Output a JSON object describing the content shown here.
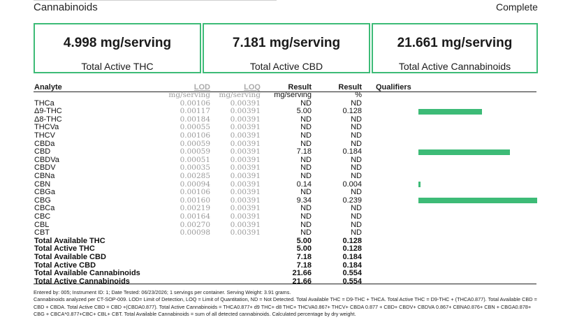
{
  "header": {
    "title": "Cannabinoids",
    "status": "Complete"
  },
  "summary_cards": [
    {
      "value": "4.998 mg/serving",
      "label": "Total Active THC"
    },
    {
      "value": "7.181 mg/serving",
      "label": "Total Active CBD"
    },
    {
      "value": "21.661 mg/serving",
      "label": "Total Active Cannabinoids"
    }
  ],
  "table": {
    "headers": {
      "analyte": "Analyte",
      "lod": "LOD",
      "loq": "LOQ",
      "result_mg": "Result",
      "result_pct": "Result",
      "qualifiers": "Qualifiers"
    },
    "units": {
      "lod": "mg/serving",
      "loq": "mg/serving",
      "result_mg": "mg/serving",
      "result_pct": "%"
    },
    "rows": [
      {
        "name": "THCa",
        "lod": "0.00106",
        "loq": "0.00391",
        "mg": "ND",
        "pct": "ND",
        "bar_pct": 0
      },
      {
        "name": "Δ9-THC",
        "lod": "0.00117",
        "loq": "0.00391",
        "mg": "5.00",
        "pct": "0.128",
        "bar_pct": 0.128
      },
      {
        "name": "Δ8-THC",
        "lod": "0.00184",
        "loq": "0.00391",
        "mg": "ND",
        "pct": "ND",
        "bar_pct": 0
      },
      {
        "name": "THCVa",
        "lod": "0.00055",
        "loq": "0.00391",
        "mg": "ND",
        "pct": "ND",
        "bar_pct": 0
      },
      {
        "name": "THCV",
        "lod": "0.00106",
        "loq": "0.00391",
        "mg": "ND",
        "pct": "ND",
        "bar_pct": 0
      },
      {
        "name": "CBDa",
        "lod": "0.00059",
        "loq": "0.00391",
        "mg": "ND",
        "pct": "ND",
        "bar_pct": 0
      },
      {
        "name": "CBD",
        "lod": "0.00059",
        "loq": "0.00391",
        "mg": "7.18",
        "pct": "0.184",
        "bar_pct": 0.184
      },
      {
        "name": "CBDVa",
        "lod": "0.00051",
        "loq": "0.00391",
        "mg": "ND",
        "pct": "ND",
        "bar_pct": 0
      },
      {
        "name": "CBDV",
        "lod": "0.00035",
        "loq": "0.00391",
        "mg": "ND",
        "pct": "ND",
        "bar_pct": 0
      },
      {
        "name": "CBNa",
        "lod": "0.00285",
        "loq": "0.00391",
        "mg": "ND",
        "pct": "ND",
        "bar_pct": 0
      },
      {
        "name": "CBN",
        "lod": "0.00094",
        "loq": "0.00391",
        "mg": "0.14",
        "pct": "0.004",
        "bar_pct": 0.004
      },
      {
        "name": "CBGa",
        "lod": "0.00106",
        "loq": "0.00391",
        "mg": "ND",
        "pct": "ND",
        "bar_pct": 0
      },
      {
        "name": "CBG",
        "lod": "0.00160",
        "loq": "0.00391",
        "mg": "9.34",
        "pct": "0.239",
        "bar_pct": 0.239
      },
      {
        "name": "CBCa",
        "lod": "0.00219",
        "loq": "0.00391",
        "mg": "ND",
        "pct": "ND",
        "bar_pct": 0
      },
      {
        "name": "CBC",
        "lod": "0.00164",
        "loq": "0.00391",
        "mg": "ND",
        "pct": "ND",
        "bar_pct": 0
      },
      {
        "name": "CBL",
        "lod": "0.00270",
        "loq": "0.00391",
        "mg": "ND",
        "pct": "ND",
        "bar_pct": 0
      },
      {
        "name": "CBT",
        "lod": "0.00098",
        "loq": "0.00391",
        "mg": "ND",
        "pct": "ND",
        "bar_pct": 0
      }
    ],
    "totals": [
      {
        "name": "Total Available THC",
        "mg": "5.00",
        "pct": "0.128"
      },
      {
        "name": "Total Active THC",
        "mg": "5.00",
        "pct": "0.128"
      },
      {
        "name": "Total Available CBD",
        "mg": "7.18",
        "pct": "0.184"
      },
      {
        "name": "Total Active CBD",
        "mg": "7.18",
        "pct": "0.184"
      },
      {
        "name": "Total Available Cannabinoids",
        "mg": "21.66",
        "pct": "0.554"
      },
      {
        "name": "Total Active Cannabinoids",
        "mg": "21.66",
        "pct": "0.554"
      }
    ]
  },
  "footnote": {
    "line1": "Entered by: 005; Instrument ID: 1; Date Tested: 06/23/2026; 1 servings per container. Serving Weight: 3.91 grams.",
    "line2": "Cannabinoids analyzed per CT-SOP-009. LOD= Limit of Detection, LOQ = Limit of Quantitation, ND = Not Detected. Total Available THC = D9-THC + THCA. Total Active THC = D9-THC + (THCA0.877). Total Available CBD = CBD + CBDA. Total Active CBD = CBD +(CBDA0.877). Total Active Cannabinoids = THCA0.877+ d9 THC+ d8 THC+ THCVA0.867+ THCV+ CBDA 0.877 + CBD+ CBDV+ CBDVA 0.867+ CBNA0.876+ CBN + CBGA0.878+ CBG + CBCA*0.877+CBC+ CBL+ CBT. Total Available Cannabinoids = sum of all detected cannabinoids. Calculated percentage by dry weight."
  },
  "colors": {
    "accent": "#3dbb77",
    "muted": "#9a9a9a"
  }
}
